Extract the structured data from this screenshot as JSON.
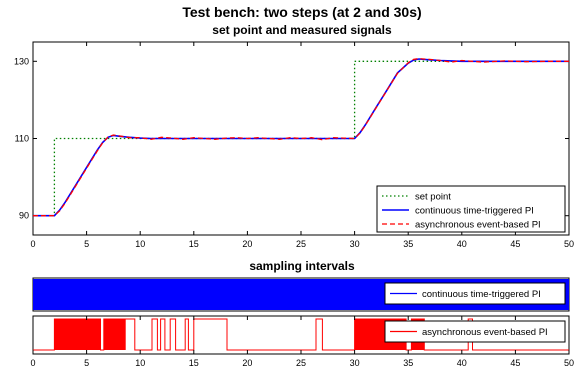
{
  "figure": {
    "title": "Test bench: two steps (at 2 and 30s)"
  },
  "colors": {
    "setpoint": "#008000",
    "continuous": "#0000ff",
    "event": "#ff0000",
    "axes": "#000000",
    "background": "#ffffff"
  },
  "chart_data": [
    {
      "type": "line",
      "title": "set point and measured signals",
      "xlabel": "",
      "ylabel": "",
      "xlim": [
        0,
        50
      ],
      "ylim": [
        85,
        135
      ],
      "xticks": [
        0,
        5,
        10,
        15,
        20,
        25,
        30,
        35,
        40,
        45,
        50
      ],
      "yticks": [
        90,
        110,
        130
      ],
      "grid": false,
      "legend_position": "bottom-right",
      "series": [
        {
          "name": "set point",
          "style": "dotted",
          "color": "#008000",
          "x": [
            0,
            2,
            2,
            30,
            30,
            50
          ],
          "y": [
            90,
            90,
            110,
            110,
            130,
            130
          ]
        },
        {
          "name": "continuous time-triggered PI",
          "style": "solid",
          "color": "#0000ff",
          "x": [
            0,
            2,
            2.5,
            3,
            4,
            5,
            6,
            6.5,
            7,
            7.5,
            8,
            9,
            10,
            11,
            12,
            13,
            14,
            15,
            16,
            17,
            18,
            19,
            20,
            22,
            24,
            26,
            28,
            30,
            30.5,
            31,
            32,
            33,
            34,
            35,
            35.5,
            36,
            37,
            38,
            40,
            42,
            44,
            46,
            48,
            50
          ],
          "y": [
            90,
            90,
            91.5,
            93.5,
            98,
            102.5,
            107,
            109,
            110.3,
            110.8,
            110.6,
            110.3,
            110.1,
            110.0,
            110.0,
            110.0,
            110.0,
            110.0,
            110.0,
            110.0,
            110.0,
            110.0,
            110.0,
            110.0,
            110.0,
            110.0,
            110.0,
            110.0,
            111.5,
            113.5,
            118,
            122.5,
            127,
            129.5,
            130.3,
            130.6,
            130.4,
            130.2,
            130.0,
            130.0,
            130.0,
            130.0,
            130.0,
            130.0
          ]
        },
        {
          "name": "asynchronous event-based PI",
          "style": "dashed",
          "color": "#ff0000",
          "x": [
            0,
            2,
            2.5,
            3,
            4,
            5,
            6,
            6.5,
            7,
            7.5,
            8,
            9,
            10,
            11,
            12,
            13,
            14,
            15,
            16,
            17,
            18,
            19,
            20,
            21,
            22,
            23,
            24,
            25,
            26,
            27,
            28,
            29,
            30,
            30.5,
            31,
            32,
            33,
            34,
            35,
            35.5,
            36,
            37,
            38,
            39,
            40,
            41,
            42,
            44,
            46,
            48,
            50
          ],
          "y": [
            90,
            90,
            91.3,
            93.3,
            97.8,
            102.3,
            106.8,
            108.9,
            110.4,
            110.9,
            110.7,
            110.2,
            110.2,
            109.8,
            110.3,
            110.1,
            109.8,
            110.2,
            110.0,
            109.8,
            110.1,
            110.2,
            110.0,
            110.2,
            110.0,
            109.8,
            110.2,
            110.0,
            110.2,
            109.7,
            110.2,
            110.1,
            110.0,
            111.4,
            113.4,
            117.9,
            122.4,
            126.9,
            129.6,
            130.5,
            130.7,
            130.5,
            130.2,
            129.8,
            130.2,
            130.0,
            129.8,
            130.1,
            129.9,
            130.0,
            130.0
          ]
        }
      ]
    },
    {
      "type": "line",
      "title": "sampling intervals",
      "xlabel": "",
      "ylabel": "",
      "xlim": [
        0,
        50
      ],
      "xticks": [
        0,
        5,
        10,
        15,
        20,
        25,
        30,
        35,
        40,
        45,
        50
      ],
      "legend_position": "right",
      "series": [
        {
          "name": "continuous time-triggered PI",
          "color": "#0000ff",
          "description_of_marks": "dense periodic sampling over the whole range",
          "filled_intervals": [
            [
              0,
              50
            ]
          ]
        }
      ]
    },
    {
      "type": "line",
      "title": "",
      "xlim": [
        0,
        50
      ],
      "xticks": [
        0,
        5,
        10,
        15,
        20,
        25,
        30,
        35,
        40,
        45,
        50
      ],
      "legend_position": "right",
      "series": [
        {
          "name": "asynchronous event-based PI",
          "color": "#ff0000",
          "filled_intervals": [
            [
              2,
              6.3
            ],
            [
              6.6,
              8.6
            ],
            [
              30,
              34.8
            ],
            [
              35.3,
              36.5
            ]
          ],
          "high_spans": [
            [
              8.6,
              9.5
            ],
            [
              11.1,
              11.6
            ],
            [
              11.9,
              12.3
            ],
            [
              12.8,
              13.3
            ],
            [
              14.2,
              14.5
            ],
            [
              15.0,
              18.1
            ],
            [
              26.4,
              27.0
            ],
            [
              40.6,
              41.0
            ]
          ]
        }
      ]
    }
  ]
}
